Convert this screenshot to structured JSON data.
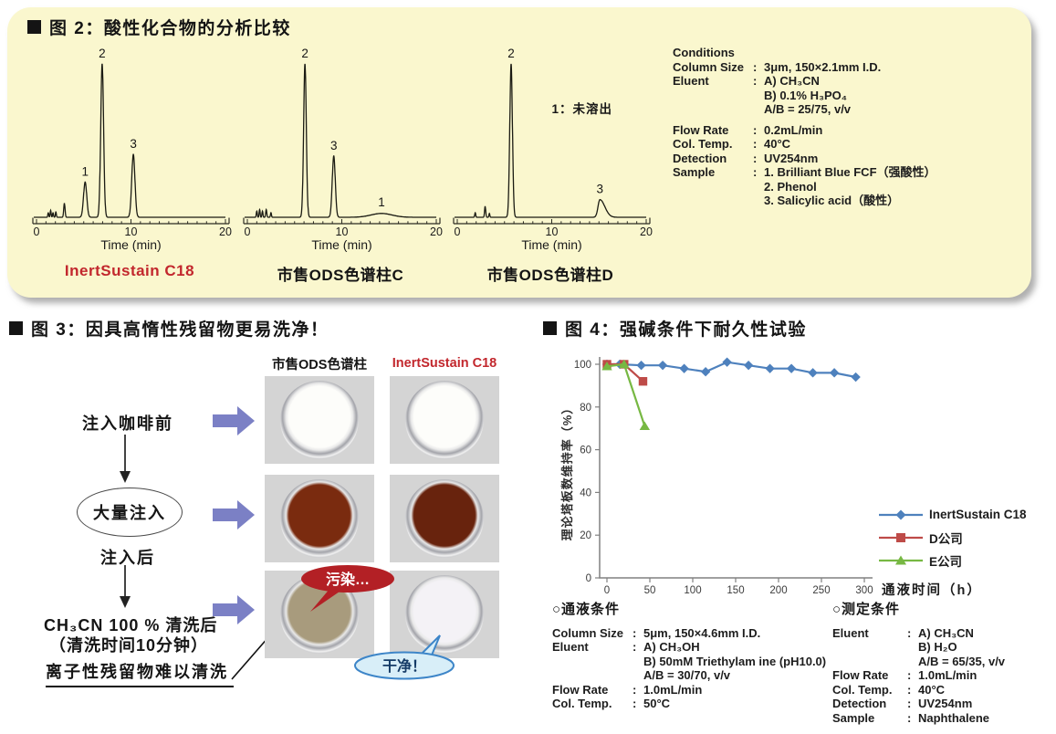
{
  "fig2": {
    "title": "图 2：酸性化合物的分析比较",
    "panel_bg": "#faf7ce",
    "xlabel": "Time (min)",
    "chromatograms": [
      {
        "label": "InertSustain C18",
        "label_color": "#c2272d",
        "xmax": 20,
        "xticks": [
          0,
          10,
          20
        ],
        "peaks": [
          {
            "id": "1",
            "t": 5.15,
            "h": 23,
            "w": 0.17
          },
          {
            "id": "2",
            "t": 6.95,
            "h": 100,
            "w": 0.15
          },
          {
            "id": "3",
            "t": 10.25,
            "h": 41,
            "w": 0.17
          }
        ],
        "noise": [
          {
            "t": 1.25,
            "h": 3,
            "w": 0.05
          },
          {
            "t": 1.5,
            "h": 4.5,
            "w": 0.05
          },
          {
            "t": 1.75,
            "h": 3,
            "w": 0.05
          },
          {
            "t": 2.05,
            "h": 3.5,
            "w": 0.05
          },
          {
            "t": 2.95,
            "h": 9,
            "w": 0.07
          }
        ]
      },
      {
        "label": "市售ODS色谱柱C",
        "label_color": "#141414",
        "xmax": 20,
        "xticks": [
          0,
          10,
          20
        ],
        "peaks": [
          {
            "id": "2",
            "t": 6.1,
            "h": 100,
            "w": 0.14
          },
          {
            "id": "3",
            "t": 9.15,
            "h": 40,
            "w": 0.16
          },
          {
            "id": "1",
            "t": 14.2,
            "h": 2.5,
            "w": 1.1
          }
        ],
        "noise": [
          {
            "t": 1.0,
            "h": 4,
            "w": 0.05
          },
          {
            "t": 1.3,
            "h": 5,
            "w": 0.05
          },
          {
            "t": 1.6,
            "h": 4,
            "w": 0.05
          },
          {
            "t": 2.0,
            "h": 5,
            "w": 0.06
          },
          {
            "t": 2.5,
            "h": 3,
            "w": 0.05
          }
        ]
      },
      {
        "label": "市售ODS色谱柱D",
        "label_color": "#141414",
        "xmax": 20,
        "xticks": [
          0,
          10,
          20
        ],
        "annotation": {
          "text": "1：未溶出",
          "t": 10.0,
          "y": 72
        },
        "peaks": [
          {
            "id": "2",
            "t": 5.7,
            "h": 100,
            "w": 0.14
          },
          {
            "id": "3",
            "t": 15.1,
            "h": 11.5,
            "w": 0.2,
            "tail": 2.6
          }
        ],
        "noise": [
          {
            "t": 1.9,
            "h": 3,
            "w": 0.05
          },
          {
            "t": 2.95,
            "h": 7,
            "w": 0.06
          },
          {
            "t": 3.4,
            "h": 2.5,
            "w": 0.05
          }
        ]
      }
    ],
    "conditions": {
      "heading": "Conditions",
      "rows": [
        [
          "Column Size",
          "3μm, 150×2.1mm I.D."
        ],
        [
          "Eluent",
          "A) CH₃CN"
        ],
        [
          "",
          "B) 0.1% H₃PO₄"
        ],
        [
          "",
          "A/B = 25/75, v/v"
        ],
        [
          "",
          ""
        ],
        [
          "Flow Rate",
          "0.2mL/min"
        ],
        [
          "Col. Temp.",
          "40°C"
        ],
        [
          "Detection",
          "UV254nm"
        ],
        [
          "Sample",
          "1. Brilliant Blue FCF（强酸性）"
        ],
        [
          "",
          "2. Phenol"
        ],
        [
          "",
          "3. Salicylic acid（酸性）"
        ]
      ]
    }
  },
  "fig3": {
    "title": "图 3：因具高惰性残留物更易洗净！",
    "col_left_header": "市售ODS色谱柱",
    "col_right_header": "InertSustain C18",
    "col_right_color": "#c2272d",
    "steps": {
      "before": "注入咖啡前",
      "inject": "大量注入",
      "after": "注入后",
      "wash1": "CH₃CN 100 % 清洗后",
      "wash2": "（清洗时间10分钟）",
      "note": "离子性残留物难以清洗"
    },
    "bubbles": {
      "dirty": "污染…",
      "dirty_fill": "#b32025",
      "clean": "干净！",
      "clean_fill": "#d8eef8",
      "clean_border": "#3d85c8",
      "clean_text_color": "#143a66"
    },
    "photos": [
      {
        "name": "ods-before-injection",
        "fill": "#fdfdfa"
      },
      {
        "name": "inertsustain-before-injection",
        "fill": "#fdfdfa"
      },
      {
        "name": "ods-after-injection",
        "fill": "#7a2b0f"
      },
      {
        "name": "inertsustain-after-injection",
        "fill": "#68230d"
      },
      {
        "name": "ods-after-wash",
        "fill": "#a89b7d"
      },
      {
        "name": "inertsustain-after-wash",
        "fill": "#f4f2f6"
      }
    ],
    "arrow_color": "#7b80c5",
    "photo_bg": "#d4d4d4"
  },
  "fig4": {
    "title": "图 4：强碱条件下耐久性试验",
    "flow_heading": "○通液条件",
    "flow_rows": [
      [
        "Column Size",
        "5μm, 150×4.6mm I.D."
      ],
      [
        "Eluent",
        "A) CH₃OH"
      ],
      [
        "",
        "B) 50mM Triethylam ine (pH10.0)"
      ],
      [
        "",
        "A/B = 30/70, v/v"
      ],
      [
        "Flow Rate",
        "1.0mL/min"
      ],
      [
        "Col. Temp.",
        "50°C"
      ]
    ],
    "meas_heading": "○测定条件",
    "meas_rows": [
      [
        "Eluent",
        "A) CH₃CN"
      ],
      [
        "",
        "B) H₂O"
      ],
      [
        "",
        "A/B = 65/35, v/v"
      ],
      [
        "Flow Rate",
        "1.0mL/min"
      ],
      [
        "Col. Temp.",
        "40°C"
      ],
      [
        "Detection",
        "UV254nm"
      ],
      [
        "Sample",
        "Naphthalene"
      ]
    ]
  },
  "chart_data": {
    "type": "line",
    "title": "图 4：强碱条件下耐久性试验",
    "xlabel": "通液时间（h）",
    "ylabel": "理论塔板数维持率（%）",
    "xlim": [
      0,
      300
    ],
    "ylim": [
      0,
      100
    ],
    "xticks": [
      0,
      50,
      100,
      150,
      200,
      250,
      300
    ],
    "yticks": [
      0,
      20,
      40,
      60,
      80,
      100
    ],
    "grid": false,
    "legend_position": "right",
    "series": [
      {
        "name": "InertSustain C18",
        "color": "#4e81bd",
        "marker": "diamond",
        "x": [
          0,
          15,
          40,
          65,
          90,
          115,
          140,
          165,
          190,
          215,
          240,
          265,
          290
        ],
        "y": [
          100,
          100,
          99.5,
          99.5,
          98,
          96.5,
          101,
          99.5,
          98,
          98,
          96,
          96,
          94
        ]
      },
      {
        "name": "D公司",
        "color": "#be4b48",
        "marker": "square",
        "x": [
          0,
          20,
          42
        ],
        "y": [
          100,
          100,
          92
        ]
      },
      {
        "name": "E公司",
        "color": "#77b843",
        "marker": "triangle",
        "x": [
          0,
          20,
          44
        ],
        "y": [
          99,
          100,
          71
        ]
      }
    ]
  }
}
